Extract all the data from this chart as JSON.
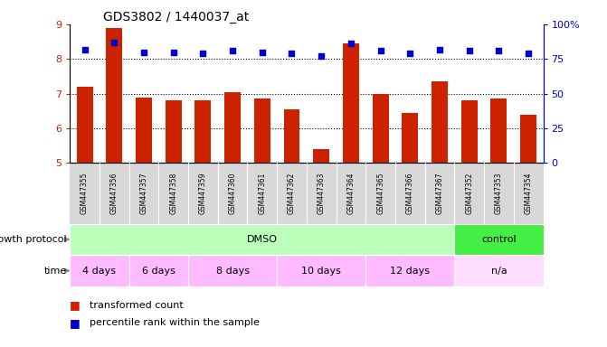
{
  "title": "GDS3802 / 1440037_at",
  "samples": [
    "GSM447355",
    "GSM447356",
    "GSM447357",
    "GSM447358",
    "GSM447359",
    "GSM447360",
    "GSM447361",
    "GSM447362",
    "GSM447363",
    "GSM447364",
    "GSM447365",
    "GSM447366",
    "GSM447367",
    "GSM447352",
    "GSM447353",
    "GSM447354"
  ],
  "transformed_count": [
    7.2,
    8.9,
    6.9,
    6.8,
    6.8,
    7.05,
    6.85,
    6.55,
    5.4,
    8.45,
    7.0,
    6.45,
    7.35,
    6.8,
    6.85,
    6.4
  ],
  "percentile_rank": [
    82,
    87,
    80,
    80,
    79,
    81,
    80,
    79,
    77,
    86,
    81,
    79,
    82,
    81,
    81,
    79
  ],
  "bar_color": "#cc2200",
  "dot_color": "#0000cc",
  "ylim_left": [
    5,
    9
  ],
  "ylim_right": [
    0,
    100
  ],
  "yticks_left": [
    5,
    6,
    7,
    8,
    9
  ],
  "yticks_right": [
    0,
    25,
    50,
    75,
    100
  ],
  "yticklabels_right": [
    "0",
    "25",
    "50",
    "75",
    "100%"
  ],
  "hlines": [
    6,
    7,
    8
  ],
  "axis_label_color_left": "#cc2200",
  "axis_label_color_right": "#0000cc",
  "tick_bg_color": "#d8d8d8",
  "dmso_color": "#bbffbb",
  "control_color": "#44ee44",
  "time_dmso_color": "#ffbbff",
  "time_na_color": "#ffddff",
  "gp_groups": [
    {
      "label": "DMSO",
      "start": 0,
      "end": 13
    },
    {
      "label": "control",
      "start": 13,
      "end": 16
    }
  ],
  "time_groups": [
    {
      "label": "4 days",
      "start": 0,
      "end": 2
    },
    {
      "label": "6 days",
      "start": 2,
      "end": 4
    },
    {
      "label": "8 days",
      "start": 4,
      "end": 7
    },
    {
      "label": "10 days",
      "start": 7,
      "end": 10
    },
    {
      "label": "12 days",
      "start": 10,
      "end": 13
    },
    {
      "label": "n/a",
      "start": 13,
      "end": 16
    }
  ],
  "legend": [
    {
      "label": "transformed count",
      "color": "#cc2200"
    },
    {
      "label": "percentile rank within the sample",
      "color": "#0000cc"
    }
  ]
}
